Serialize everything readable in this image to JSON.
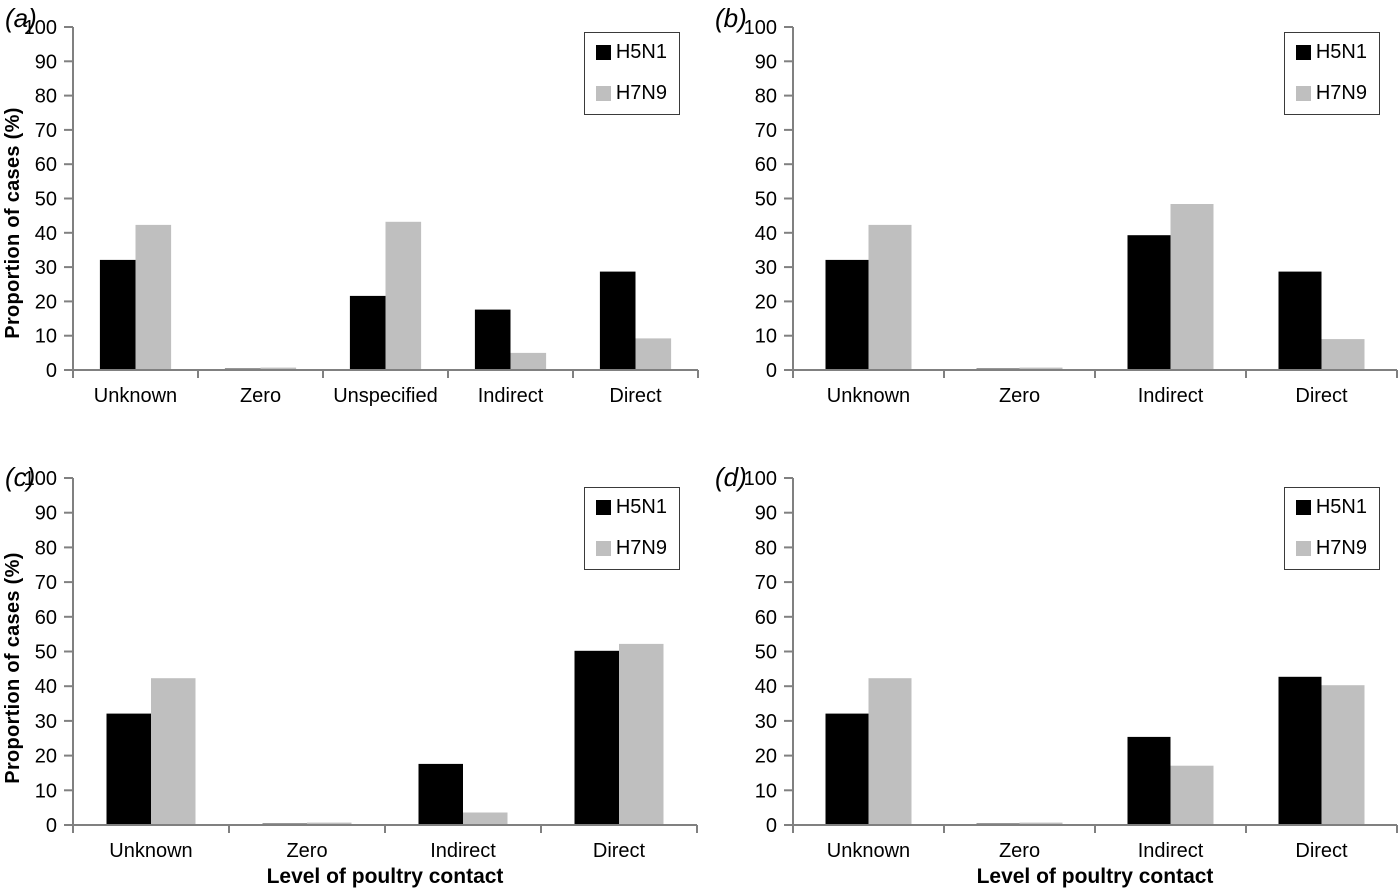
{
  "figure": {
    "y_axis_title": "Proportion of cases (%)",
    "x_axis_title": "Level of poultry contact",
    "legend": [
      "H5N1",
      "H7N9"
    ],
    "colors": {
      "h5n1": "#000000",
      "h7n9": "#bfbfbf",
      "axis": "#808080"
    }
  },
  "chart_data": [
    {
      "type": "bar",
      "panel_label": "(a)",
      "title": "",
      "xlabel": "",
      "ylabel": "Proportion of cases (%)",
      "ylim": [
        0,
        100
      ],
      "ytick_step": 10,
      "grid": false,
      "legend_position": "top-right",
      "categories": [
        "Unknown",
        "Zero",
        "Unspecified",
        "Indirect",
        "Direct"
      ],
      "series": [
        {
          "name": "H5N1",
          "color": "#000000",
          "values": [
            32.1,
            0.4,
            21.6,
            17.6,
            28.7
          ]
        },
        {
          "name": "H7N9",
          "color": "#bfbfbf",
          "values": [
            42.3,
            0.7,
            43.2,
            5.0,
            9.2
          ]
        }
      ]
    },
    {
      "type": "bar",
      "panel_label": "(b)",
      "title": "",
      "xlabel": "",
      "ylabel": "",
      "ylim": [
        0,
        100
      ],
      "ytick_step": 10,
      "grid": false,
      "legend_position": "top-right",
      "categories": [
        "Unknown",
        "Zero",
        "Indirect",
        "Direct"
      ],
      "series": [
        {
          "name": "H5N1",
          "color": "#000000",
          "values": [
            32.1,
            0.4,
            39.3,
            28.7
          ]
        },
        {
          "name": "H7N9",
          "color": "#bfbfbf",
          "values": [
            42.3,
            0.7,
            48.4,
            9.0
          ]
        }
      ]
    },
    {
      "type": "bar",
      "panel_label": "(c)",
      "title": "",
      "xlabel": "Level of poultry contact",
      "ylabel": "Proportion of cases (%)",
      "ylim": [
        0,
        100
      ],
      "ytick_step": 10,
      "grid": false,
      "legend_position": "top-right",
      "categories": [
        "Unknown",
        "Zero",
        "Indirect",
        "Direct"
      ],
      "series": [
        {
          "name": "H5N1",
          "color": "#000000",
          "values": [
            32.1,
            0.4,
            17.6,
            50.2
          ]
        },
        {
          "name": "H7N9",
          "color": "#bfbfbf",
          "values": [
            42.3,
            0.7,
            3.6,
            52.2
          ]
        }
      ]
    },
    {
      "type": "bar",
      "panel_label": "(d)",
      "title": "",
      "xlabel": "Level of poultry contact",
      "ylabel": "",
      "ylim": [
        0,
        100
      ],
      "ytick_step": 10,
      "grid": false,
      "legend_position": "top-right",
      "categories": [
        "Unknown",
        "Zero",
        "Indirect",
        "Direct"
      ],
      "series": [
        {
          "name": "H5N1",
          "color": "#000000",
          "values": [
            32.1,
            0.4,
            25.4,
            42.7
          ]
        },
        {
          "name": "H7N9",
          "color": "#bfbfbf",
          "values": [
            42.3,
            0.7,
            17.1,
            40.3
          ]
        }
      ]
    }
  ]
}
